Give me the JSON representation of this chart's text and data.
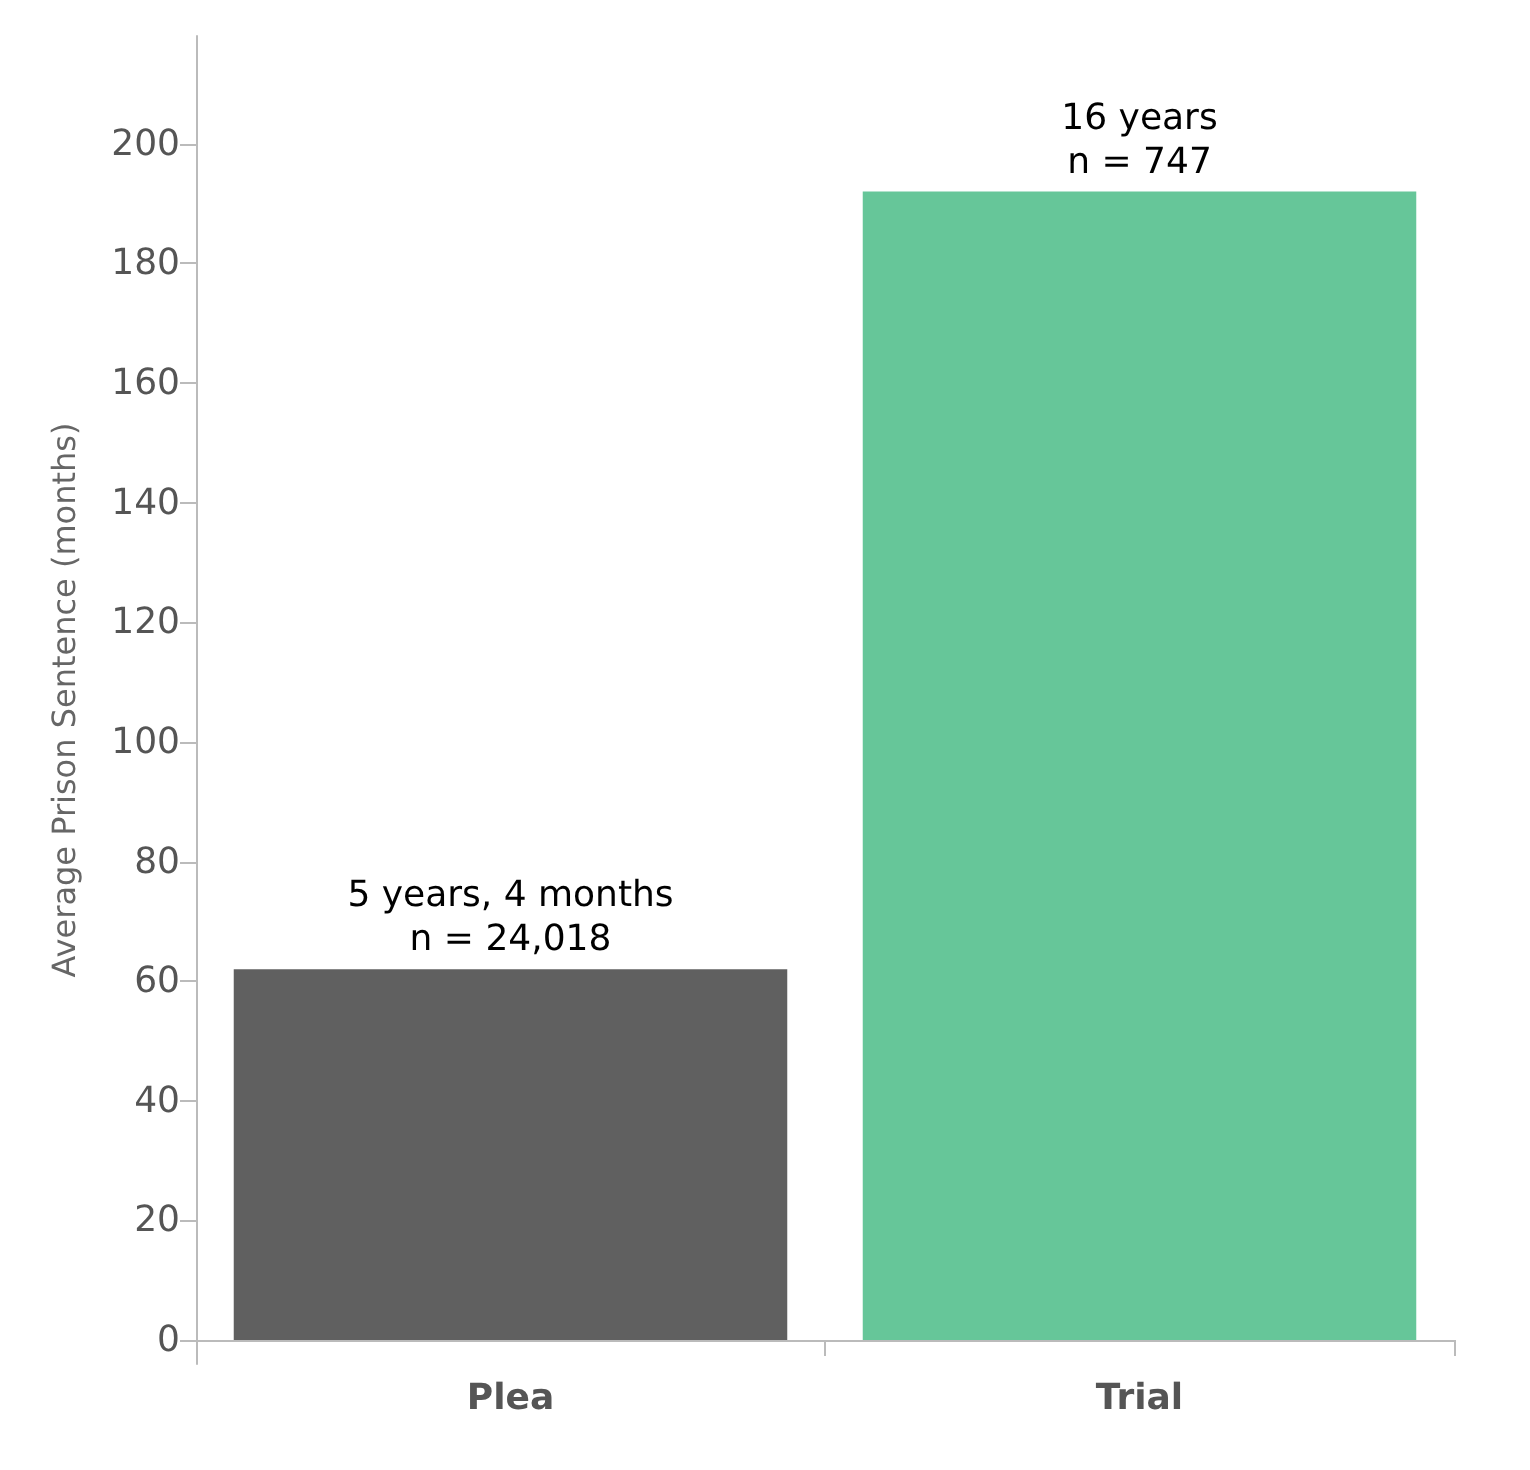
{
  "chart_data": {
    "type": "bar",
    "categories": [
      "Plea",
      "Trial"
    ],
    "values": [
      62,
      192
    ],
    "colors": [
      "#606060",
      "#66c699"
    ],
    "annotations": [
      {
        "text": "5 years, 4 months\nn = 24,018",
        "x": "Plea",
        "y": 62
      },
      {
        "text": "16 years\nn = 747",
        "x": "Trial",
        "y": 192
      }
    ],
    "ylabel": "Average Prison Sentence (months)",
    "ylim": [
      -4,
      218
    ],
    "yticks": [
      0,
      20,
      40,
      60,
      80,
      100,
      120,
      140,
      160,
      180,
      200
    ]
  }
}
